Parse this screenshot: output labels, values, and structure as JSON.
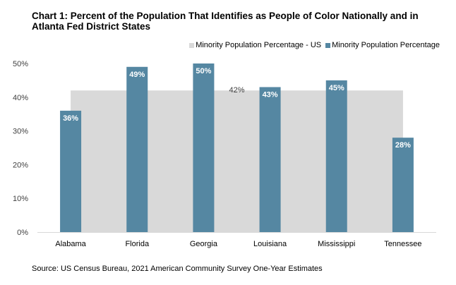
{
  "chart_data": {
    "type": "bar",
    "title": "Chart 1: Percent of the Population That Identifies as People of Color Nationally and in Atlanta Fed District States",
    "categories": [
      "Alabama",
      "Florida",
      "Georgia",
      "Louisiana",
      "Mississippi",
      "Tennessee"
    ],
    "series": [
      {
        "name": "Minority Population Percentage - US",
        "type": "area",
        "values": [
          42,
          42,
          42,
          42,
          42,
          42
        ],
        "color": "#d9d9d9",
        "data_label": "42%"
      },
      {
        "name": "Minority Population Percentage",
        "type": "bar",
        "values": [
          36,
          49,
          50,
          43,
          45,
          28
        ],
        "labels": [
          "36%",
          "49%",
          "50%",
          "43%",
          "45%",
          "28%"
        ],
        "color": "#5587a2"
      }
    ],
    "yticks": [
      "0%",
      "10%",
      "20%",
      "30%",
      "40%",
      "50%"
    ],
    "ylim": [
      0,
      50
    ],
    "grid": false,
    "legend": "top-right",
    "xlabel": "",
    "ylabel": ""
  },
  "source": "Source: US Census Bureau, 2021 American Community Survey One-Year Estimates"
}
